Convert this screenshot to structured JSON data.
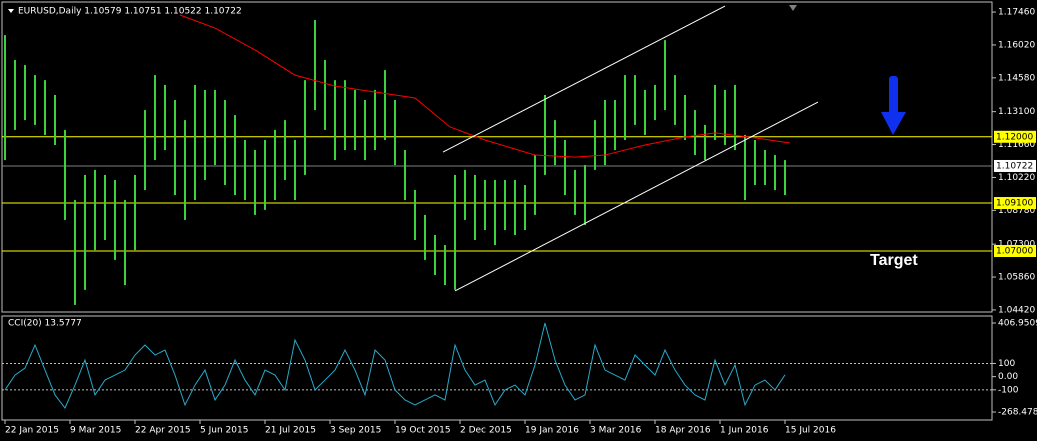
{
  "chart_data": [
    {
      "type": "price-bars",
      "title": "EURUSD,Daily  1.10579 1.10751 1.10522 1.10722",
      "annotation": "Target",
      "color": "#3cd23c",
      "x": [
        0,
        1,
        2,
        3,
        4,
        5,
        6,
        7,
        8,
        9,
        10,
        11,
        12,
        13,
        14,
        15,
        16,
        17,
        18,
        19,
        20,
        21,
        22,
        23,
        24,
        25,
        26,
        27,
        28,
        29,
        30,
        31,
        32,
        33,
        34,
        35,
        36,
        37,
        38,
        39,
        40,
        41,
        42,
        43,
        44,
        45,
        46,
        47,
        48,
        49,
        50,
        51,
        52,
        53,
        54,
        55,
        56,
        57,
        58,
        59,
        60,
        61,
        62,
        63,
        64,
        65,
        66,
        67,
        68,
        69,
        70,
        71,
        72,
        73,
        74,
        75,
        76,
        77,
        78
      ],
      "high": [
        1.1645,
        1.1536,
        1.1514,
        1.147,
        1.1448,
        1.1383,
        1.123,
        1.0923,
        1.1033,
        1.1055,
        1.1033,
        1.1011,
        1.0923,
        1.1033,
        1.1317,
        1.147,
        1.1427,
        1.1361,
        1.1273,
        1.1427,
        1.1405,
        1.1405,
        1.1361,
        1.1295,
        1.1186,
        1.1142,
        1.1186,
        1.123,
        1.1273,
        1.1186,
        1.1448,
        1.1711,
        1.1536,
        1.1448,
        1.1448,
        1.1405,
        1.1361,
        1.1405,
        1.1492,
        1.1361,
        1.1142,
        1.0967,
        1.0858,
        1.077,
        1.0726,
        1.1033,
        1.1055,
        1.1033,
        1.1011,
        1.1011,
        1.1011,
        1.1011,
        1.0989,
        1.112,
        1.1383,
        1.1273,
        1.1186,
        1.1055,
        1.1076,
        1.1273,
        1.1361,
        1.1361,
        1.147,
        1.147,
        1.1405,
        1.1427,
        1.1623,
        1.147,
        1.1383,
        1.1317,
        1.1252,
        1.1427,
        1.1405,
        1.1427,
        1.1208,
        1.1186,
        1.1142,
        1.112,
        1.1098
      ],
      "low": [
        1.1098,
        1.123,
        1.1273,
        1.1252,
        1.1208,
        1.1164,
        1.0836,
        1.0464,
        1.053,
        1.0704,
        1.0748,
        1.0661,
        1.0551,
        1.0704,
        1.0967,
        1.1098,
        1.1142,
        1.0945,
        1.0836,
        1.0923,
        1.1011,
        1.1076,
        1.0989,
        1.0945,
        1.0923,
        1.0858,
        1.088,
        1.0923,
        1.1011,
        1.0923,
        1.1033,
        1.1317,
        1.123,
        1.1098,
        1.1142,
        1.1142,
        1.1098,
        1.1142,
        1.1186,
        1.1076,
        1.0923,
        1.0748,
        1.0661,
        1.0595,
        1.0551,
        1.053,
        1.0836,
        1.0748,
        1.0792,
        1.0726,
        1.0792,
        1.077,
        1.0792,
        1.0858,
        1.1033,
        1.1076,
        1.0945,
        1.0858,
        1.0814,
        1.1055,
        1.1076,
        1.1142,
        1.1186,
        1.1252,
        1.1208,
        1.1273,
        1.1317,
        1.1252,
        1.1186,
        1.112,
        1.1098,
        1.1186,
        1.1164,
        1.1142,
        1.0923,
        1.0989,
        1.0989,
        1.0967,
        1.0945
      ],
      "ma": {
        "color": "#ff0000",
        "x": [
          17.5,
          21,
          25,
          29,
          33,
          37,
          41,
          44.5,
          48,
          53,
          57,
          60,
          64,
          68,
          71,
          75,
          78.5
        ],
        "values": [
          1.1733,
          1.1676,
          1.158,
          1.147,
          1.1422,
          1.1396,
          1.137,
          1.1243,
          1.1186,
          1.112,
          1.1111,
          1.112,
          1.1164,
          1.1199,
          1.1217,
          1.1195,
          1.1173
        ]
      },
      "trendlines": [
        {
          "color": "#ffffff",
          "x": [
            43.8,
            72
          ],
          "values": [
            1.1133,
            1.1772
          ]
        },
        {
          "color": "#ffffff",
          "x": [
            45,
            81.3
          ],
          "values": [
            1.0525,
            1.1352
          ]
        }
      ],
      "levels": [
        {
          "value": 1.12,
          "label": "1.12000",
          "color": "#ffff00"
        },
        {
          "value": 1.10722,
          "color": "#808080"
        },
        {
          "value": 1.091,
          "label": "1.09100",
          "color": "#ffff00"
        },
        {
          "value": 1.07,
          "label": "1.07000",
          "color": "#ffff00"
        }
      ],
      "xlim": [
        -0.3,
        98.7
      ],
      "ylim": [
        1.0433,
        1.179
      ],
      "yticks": [
        {
          "value": 1.1746,
          "label": "1.17460"
        },
        {
          "value": 1.1602,
          "label": "1.16020"
        },
        {
          "value": 1.1458,
          "label": "1.14580"
        },
        {
          "value": 1.131,
          "label": "1.13100"
        },
        {
          "value": 1.1166,
          "label": "1.11660"
        },
        {
          "value": 1.1022,
          "label": "1.10220"
        },
        {
          "value": 1.0878,
          "label": "1.08780"
        },
        {
          "value": 1.073,
          "label": "1.07300"
        },
        {
          "value": 1.0586,
          "label": "1.05860"
        },
        {
          "value": 1.0442,
          "label": "1.04420"
        }
      ]
    },
    {
      "type": "line",
      "title": "CCI(20) 13.5777",
      "color": "#29a9c9",
      "x": [
        0,
        1,
        2,
        3,
        4,
        5,
        6,
        7,
        8,
        9,
        10,
        11,
        12,
        13,
        14,
        15,
        16,
        17,
        18,
        19,
        20,
        21,
        22,
        23,
        24,
        25,
        26,
        27,
        28,
        29,
        30,
        31,
        32,
        33,
        34,
        35,
        36,
        37,
        38,
        39,
        40,
        41,
        42,
        43,
        44,
        45,
        46,
        47,
        48,
        49,
        50,
        51,
        52,
        53,
        54,
        55,
        56,
        57,
        58,
        59,
        60,
        61,
        62,
        63,
        64,
        65,
        66,
        67,
        68,
        69,
        70,
        71,
        72,
        73,
        74,
        75,
        76,
        77,
        78
      ],
      "values": [
        -101,
        12,
        65,
        240,
        50,
        -139,
        -238,
        -64,
        126,
        -139,
        -26,
        12,
        50,
        164,
        240,
        164,
        202,
        12,
        -215,
        -64,
        50,
        -177,
        -64,
        126,
        -26,
        -139,
        50,
        12,
        -101,
        278,
        126,
        -101,
        -26,
        50,
        202,
        50,
        -139,
        202,
        126,
        -101,
        -177,
        -215,
        -177,
        -139,
        -177,
        240,
        50,
        -64,
        -26,
        -215,
        -101,
        -64,
        -139,
        88,
        407,
        126,
        -64,
        -177,
        -139,
        240,
        50,
        12,
        -26,
        164,
        88,
        12,
        202,
        50,
        -64,
        -139,
        -177,
        126,
        -64,
        88,
        -215,
        -64,
        -26,
        -101,
        14
      ],
      "levels": [
        100,
        -100
      ],
      "xlim": [
        -0.3,
        98.7
      ],
      "ylim": [
        -329,
        460
      ],
      "yticks": [
        406.9509,
        100,
        {
          "value": 0,
          "label": "0.00"
        },
        -100,
        -268.4785
      ],
      "xticks": [
        {
          "value": 0,
          "label": "22 Jan 2015"
        },
        {
          "value": 6.5,
          "label": "9 Mar 2015"
        },
        {
          "value": 13,
          "label": "22 Apr 2015"
        },
        {
          "value": 19.5,
          "label": "5 Jun 2015"
        },
        {
          "value": 26,
          "label": "21 Jul 2015"
        },
        {
          "value": 32.5,
          "label": "3 Sep 2015"
        },
        {
          "value": 39,
          "label": "19 Oct 2015"
        },
        {
          "value": 45.5,
          "label": "2 Dec 2015"
        },
        {
          "value": 52,
          "label": "19 Jan 2016"
        },
        {
          "value": 58.5,
          "label": "3 Mar 2016"
        },
        {
          "value": 65,
          "label": "18 Apr 2016"
        },
        {
          "value": 71.5,
          "label": "1 Jun 2016"
        },
        {
          "value": 78,
          "label": "15 Jul 2016"
        }
      ]
    }
  ]
}
